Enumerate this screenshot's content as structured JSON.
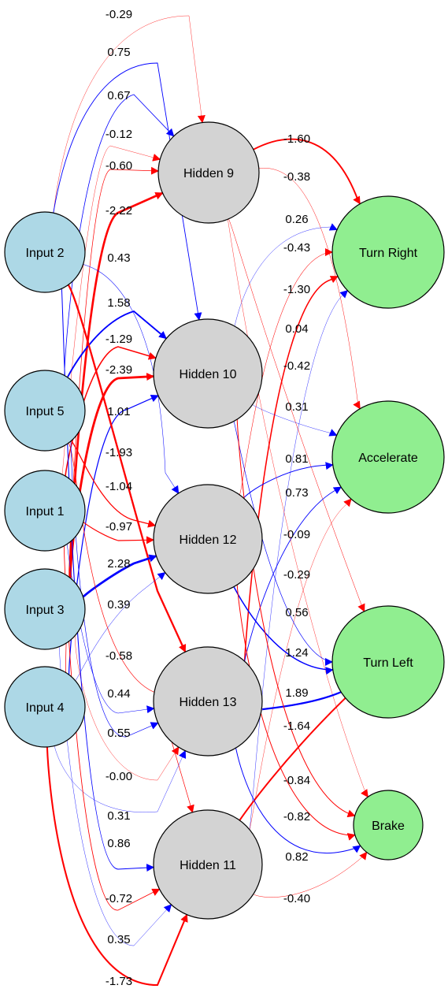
{
  "colors": {
    "positive": "#0000ff",
    "negative": "#ff0000",
    "input_fill": "#add8e6",
    "hidden_fill": "#d3d3d3",
    "output_fill": "#90ee90",
    "node_stroke": "#000000",
    "background": "#ffffff"
  },
  "nodes": [
    {
      "id": "in2",
      "label": "Input 2",
      "layer": "input"
    },
    {
      "id": "in5",
      "label": "Input 5",
      "layer": "input"
    },
    {
      "id": "in1",
      "label": "Input 1",
      "layer": "input"
    },
    {
      "id": "in3",
      "label": "Input 3",
      "layer": "input"
    },
    {
      "id": "in4",
      "label": "Input 4",
      "layer": "input"
    },
    {
      "id": "h9",
      "label": "Hidden 9",
      "layer": "hidden"
    },
    {
      "id": "h10",
      "label": "Hidden 10",
      "layer": "hidden"
    },
    {
      "id": "h12",
      "label": "Hidden 12",
      "layer": "hidden"
    },
    {
      "id": "h13",
      "label": "Hidden 13",
      "layer": "hidden"
    },
    {
      "id": "h11",
      "label": "Hidden 11",
      "layer": "hidden"
    },
    {
      "id": "outR",
      "label": "Turn Right",
      "layer": "output"
    },
    {
      "id": "outA",
      "label": "Accelerate",
      "layer": "output"
    },
    {
      "id": "outL",
      "label": "Turn Left",
      "layer": "output"
    },
    {
      "id": "outB",
      "label": "Brake",
      "layer": "output"
    }
  ],
  "edges": [
    {
      "from": "in2",
      "to": "h9",
      "label": "-0.29",
      "weight": -0.29
    },
    {
      "from": "in2",
      "to": "h10",
      "label": "0.75",
      "weight": 0.75
    },
    {
      "from": "in5",
      "to": "h9",
      "label": "0.67",
      "weight": 0.67
    },
    {
      "from": "in1",
      "to": "h9",
      "label": "-0.12",
      "weight": -0.12
    },
    {
      "from": "in4",
      "to": "h9",
      "label": "-0.60",
      "weight": -0.6
    },
    {
      "from": "in3",
      "to": "h9",
      "label": "-2.22",
      "weight": -2.22
    },
    {
      "from": "in2",
      "to": "h12",
      "label": "0.43",
      "weight": 0.43
    },
    {
      "from": "in5",
      "to": "h10",
      "label": "1.58",
      "weight": 1.58
    },
    {
      "from": "in1",
      "to": "h10",
      "label": "-1.29",
      "weight": -1.29
    },
    {
      "from": "in3",
      "to": "h10",
      "label": "-2.39",
      "weight": -2.39
    },
    {
      "from": "in4",
      "to": "h10",
      "label": "1.01",
      "weight": 1.01
    },
    {
      "from": "in2",
      "to": "h13",
      "label": "-1.93",
      "weight": -1.93
    },
    {
      "from": "in5",
      "to": "h12",
      "label": "-1.04",
      "weight": -1.04
    },
    {
      "from": "in1",
      "to": "h12",
      "label": "-0.97",
      "weight": -0.97
    },
    {
      "from": "in3",
      "to": "h12",
      "label": "2.28",
      "weight": 2.28
    },
    {
      "from": "in4",
      "to": "h12",
      "label": "0.39",
      "weight": 0.39
    },
    {
      "from": "in5",
      "to": "h11",
      "label": "-0.58",
      "weight": -0.58
    },
    {
      "from": "in1",
      "to": "h13",
      "label": "0.44",
      "weight": 0.44
    },
    {
      "from": "in5",
      "to": "h13",
      "label": "0.55",
      "weight": 0.55
    },
    {
      "from": "in3",
      "to": "h13",
      "label": "-0.00",
      "weight": -0.0
    },
    {
      "from": "in4",
      "to": "h13",
      "label": "0.31",
      "weight": 0.31
    },
    {
      "from": "in2",
      "to": "h11",
      "label": "0.86",
      "weight": 0.86
    },
    {
      "from": "in1",
      "to": "h11",
      "label": "-0.72",
      "weight": -0.72
    },
    {
      "from": "in3",
      "to": "h11",
      "label": "0.35",
      "weight": 0.35
    },
    {
      "from": "in4",
      "to": "h11",
      "label": "-1.73",
      "weight": -1.73
    },
    {
      "from": "h9",
      "to": "outR",
      "label": "-1.60",
      "weight": -1.6
    },
    {
      "from": "h9",
      "to": "outA",
      "label": "-0.38",
      "weight": -0.38
    },
    {
      "from": "h10",
      "to": "outR",
      "label": "0.26",
      "weight": 0.26
    },
    {
      "from": "h12",
      "to": "outR",
      "label": "-0.43",
      "weight": -0.43
    },
    {
      "from": "h13",
      "to": "outR",
      "label": "-1.30",
      "weight": -1.3
    },
    {
      "from": "h11",
      "to": "outR",
      "label": "0.04",
      "weight": 0.04
    },
    {
      "from": "h9",
      "to": "outL",
      "label": "-0.42",
      "weight": -0.42
    },
    {
      "from": "h10",
      "to": "outA",
      "label": "0.31",
      "weight": 0.31
    },
    {
      "from": "h12",
      "to": "outA",
      "label": "0.81",
      "weight": 0.81
    },
    {
      "from": "h13",
      "to": "outA",
      "label": "0.73",
      "weight": 0.73
    },
    {
      "from": "h11",
      "to": "outA",
      "label": "-0.09",
      "weight": -0.09
    },
    {
      "from": "h9",
      "to": "outB",
      "label": "-0.29",
      "weight": -0.29
    },
    {
      "from": "h10",
      "to": "outL",
      "label": "0.56",
      "weight": 0.56
    },
    {
      "from": "h12",
      "to": "outL",
      "label": "1.24",
      "weight": 1.24
    },
    {
      "from": "h13",
      "to": "outL",
      "label": "1.89",
      "weight": 1.89
    },
    {
      "from": "h11",
      "to": "outL",
      "label": "-1.64",
      "weight": -1.64
    },
    {
      "from": "h10",
      "to": "outB",
      "label": "-0.84",
      "weight": -0.84
    },
    {
      "from": "h12",
      "to": "outB",
      "label": "-0.82",
      "weight": -0.82
    },
    {
      "from": "h13",
      "to": "outB",
      "label": "0.82",
      "weight": 0.82
    },
    {
      "from": "h11",
      "to": "outB",
      "label": "-0.40",
      "weight": -0.4
    }
  ]
}
